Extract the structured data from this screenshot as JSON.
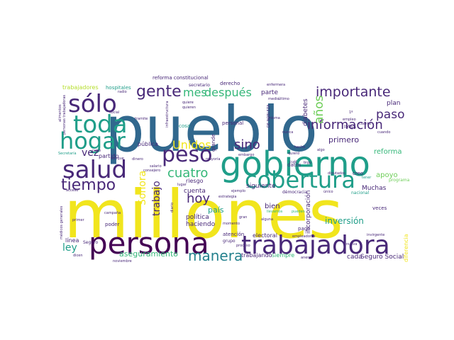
{
  "palette": {
    "yellow": "#f1e51d",
    "lime": "#b5de2b",
    "green": "#6ece58",
    "mint": "#35b779",
    "teal": "#1f9e89",
    "cyan": "#26828e",
    "blue": "#31688e",
    "indigo": "#3e4989",
    "purple": "#482878",
    "dark": "#440154"
  },
  "words": [
    {
      "text": "millones",
      "color": "yellow"
    },
    {
      "text": "pueblo",
      "color": "blue"
    },
    {
      "text": "persona",
      "color": "dark"
    },
    {
      "text": "gobierno",
      "color": "teal"
    },
    {
      "text": "trabajadora",
      "color": "purple"
    },
    {
      "text": "cobertura",
      "color": "teal"
    },
    {
      "text": "salud",
      "color": "purple"
    },
    {
      "text": "toda",
      "color": "teal"
    },
    {
      "text": "sólo",
      "color": "purple"
    },
    {
      "text": "hogar",
      "color": "teal"
    },
    {
      "text": "peso",
      "color": "purple"
    },
    {
      "text": "tiempo",
      "color": "purple"
    },
    {
      "text": "gente",
      "color": "purple"
    },
    {
      "text": "importante",
      "color": "purple"
    },
    {
      "text": "información",
      "color": "purple"
    },
    {
      "text": "manera",
      "color": "cyan"
    },
    {
      "text": "cuatro",
      "color": "mint"
    },
    {
      "text": "Unidos",
      "color": "yellow"
    },
    {
      "text": "mes",
      "color": "mint"
    },
    {
      "text": "después",
      "color": "mint"
    },
    {
      "text": "sino",
      "color": "purple"
    },
    {
      "text": "hoy",
      "color": "purple"
    },
    {
      "text": "años",
      "color": "green"
    },
    {
      "text": "paso",
      "color": "purple"
    },
    {
      "text": "vez",
      "color": "purple"
    },
    {
      "text": "trabajo",
      "color": "purple"
    },
    {
      "text": "Sonora",
      "color": "yellow"
    },
    {
      "text": "ley",
      "color": "teal"
    },
    {
      "text": "aseguramiento",
      "color": "mint"
    },
    {
      "text": "primero",
      "color": "purple"
    },
    {
      "text": "reforma",
      "color": "mint"
    },
    {
      "text": "inversión",
      "color": "teal"
    },
    {
      "text": "apoyo",
      "color": "green"
    },
    {
      "text": "país",
      "color": "teal"
    },
    {
      "text": "Muchas",
      "color": "purple"
    },
    {
      "text": "bien",
      "color": "purple"
    },
    {
      "text": "haciendo",
      "color": "purple"
    },
    {
      "text": "política",
      "color": "purple"
    },
    {
      "text": "cuenta",
      "color": "purple"
    },
    {
      "text": "siguiente",
      "color": "purple"
    },
    {
      "text": "parte",
      "color": "purple"
    },
    {
      "text": "plan",
      "color": "purple"
    },
    {
      "text": "diabetes",
      "color": "purple"
    },
    {
      "text": "incorporación",
      "color": "purple"
    },
    {
      "text": "Seguro Social",
      "color": "purple"
    },
    {
      "text": "cada",
      "color": "purple"
    },
    {
      "text": "siempre",
      "color": "mint"
    },
    {
      "text": "trabajando",
      "color": "purple"
    },
    {
      "text": "electoral",
      "color": "purple"
    },
    {
      "text": "atención",
      "color": "purple"
    },
    {
      "text": "pago",
      "color": "purple"
    },
    {
      "text": "personal",
      "color": "purple"
    },
    {
      "text": "grande",
      "color": "purple"
    },
    {
      "text": "cosa",
      "color": "teal"
    },
    {
      "text": "pública",
      "color": "purple"
    },
    {
      "text": "riesgo",
      "color": "purple"
    },
    {
      "text": "partido",
      "color": "purple"
    },
    {
      "text": "línea",
      "color": "purple"
    },
    {
      "text": "poder",
      "color": "purple"
    },
    {
      "text": "trabajadores",
      "color": "lime"
    },
    {
      "text": "hospitales",
      "color": "teal"
    },
    {
      "text": "reforma constitucional",
      "color": "purple"
    },
    {
      "text": "derecho",
      "color": "purple"
    },
    {
      "text": "secretario",
      "color": "purple"
    },
    {
      "text": "IMSS",
      "color": "purple"
    },
    {
      "text": "creo",
      "color": "purple"
    },
    {
      "text": "datos",
      "color": "purple"
    },
    {
      "text": "veces",
      "color": "purple"
    },
    {
      "text": "nacional",
      "color": "teal"
    },
    {
      "text": "démocracia",
      "color": "purple"
    },
    {
      "text": "cuál",
      "color": "purple"
    },
    {
      "text": "tener",
      "color": "teal"
    },
    {
      "text": "diputados",
      "color": "purple"
    },
    {
      "text": "grupo",
      "color": "purple"
    },
    {
      "text": "proceso",
      "color": "purple"
    },
    {
      "text": "empleadores",
      "color": "purple"
    },
    {
      "text": "hecho",
      "color": "purple"
    },
    {
      "text": "Seguro",
      "color": "purple"
    },
    {
      "text": "diferencia",
      "color": "yellow"
    },
    {
      "text": "nueva",
      "color": "purple"
    },
    {
      "text": "llevamos",
      "color": "mint"
    },
    {
      "text": "pueden",
      "color": "mint"
    },
    {
      "text": "alguna",
      "color": "purple"
    },
    {
      "text": "estrategia",
      "color": "purple"
    },
    {
      "text": "ejemplo",
      "color": "purple"
    },
    {
      "text": "salario",
      "color": "purple"
    },
    {
      "text": "cabo",
      "color": "purple"
    },
    {
      "text": "dinero",
      "color": "purple"
    },
    {
      "text": "mayoría",
      "color": "purple"
    },
    {
      "text": "embargo",
      "color": "purple"
    },
    {
      "text": "tramite",
      "color": "purple"
    },
    {
      "text": "infraestructura",
      "color": "purple"
    },
    {
      "text": "quiere",
      "color": "purple"
    },
    {
      "text": "quieren",
      "color": "purple"
    },
    {
      "text": "social",
      "color": "purple"
    },
    {
      "text": "aunque",
      "color": "purple"
    },
    {
      "text": "noviembre",
      "color": "purple"
    },
    {
      "text": "primer",
      "color": "purple"
    },
    {
      "text": "campaña",
      "color": "purple"
    },
    {
      "text": "medio",
      "color": "purple"
    },
    {
      "text": "enfermera",
      "color": "purple"
    },
    {
      "text": "empleo",
      "color": "purple"
    },
    {
      "text": "cuánto",
      "color": "purple"
    },
    {
      "text": "alimentos",
      "color": "purple"
    },
    {
      "text": "personas trabajadoras",
      "color": "purple"
    },
    {
      "text": "radio",
      "color": "purple"
    },
    {
      "text": "Secretaría",
      "color": "teal"
    },
    {
      "text": "acceso",
      "color": "purple"
    },
    {
      "text": "médicos generales",
      "color": "purple"
    },
    {
      "text": "dicen",
      "color": "purple"
    },
    {
      "text": "consejero",
      "color": "purple"
    },
    {
      "text": "diario",
      "color": "purple"
    },
    {
      "text": "lugar",
      "color": "purple"
    },
    {
      "text": "momento",
      "color": "purple"
    },
    {
      "text": "programa",
      "color": "green"
    },
    {
      "text": "único",
      "color": "purple"
    },
    {
      "text": "nunca",
      "color": "purple"
    },
    {
      "text": "misma",
      "color": "purple"
    },
    {
      "text": "DE NOBLEZA",
      "color": "purple"
    },
    {
      "text": "último",
      "color": "purple"
    },
    {
      "text": "1º",
      "color": "purple"
    },
    {
      "text": "bigo",
      "color": "purple"
    },
    {
      "text": "anera",
      "color": "purple"
    },
    {
      "text": "invirgente",
      "color": "purple"
    },
    {
      "text": "quierd",
      "color": "purple"
    },
    {
      "text": "cuando",
      "color": "purple"
    },
    {
      "text": "algo",
      "color": "purple"
    },
    {
      "text": "gran",
      "color": "purple"
    }
  ]
}
